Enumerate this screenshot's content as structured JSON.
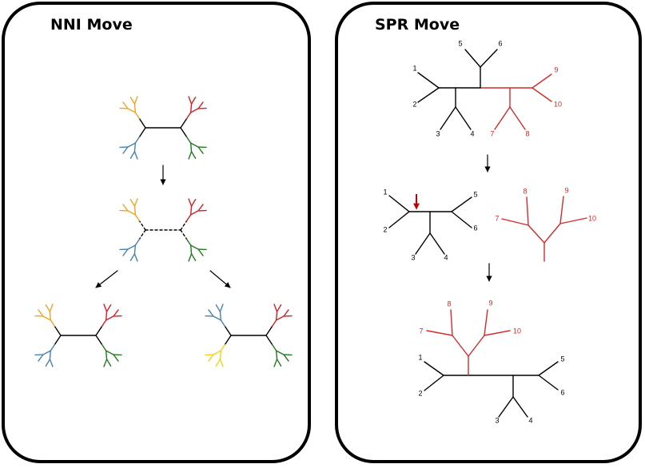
{
  "colors": {
    "black": "#000000",
    "orange": "#f0a423",
    "red": "#d21f26",
    "blue": "#4a7fb0",
    "green": "#227822",
    "yellow": "#f5d118",
    "spr_red": "#d42a2a",
    "arrow_red": "#c00000"
  },
  "nni": {
    "title": "NNI Move"
  },
  "spr": {
    "title": "SPR Move",
    "tree1_labels": [
      "1",
      "2",
      "3",
      "4",
      "5",
      "6",
      "7",
      "8",
      "9",
      "10"
    ],
    "tree2_labels": [
      "1",
      "2",
      "3",
      "4",
      "5",
      "6",
      "7",
      "8",
      "9",
      "10"
    ],
    "tree3_labels": [
      "1",
      "2",
      "3",
      "4",
      "5",
      "6",
      "7",
      "8",
      "9",
      "10"
    ]
  }
}
